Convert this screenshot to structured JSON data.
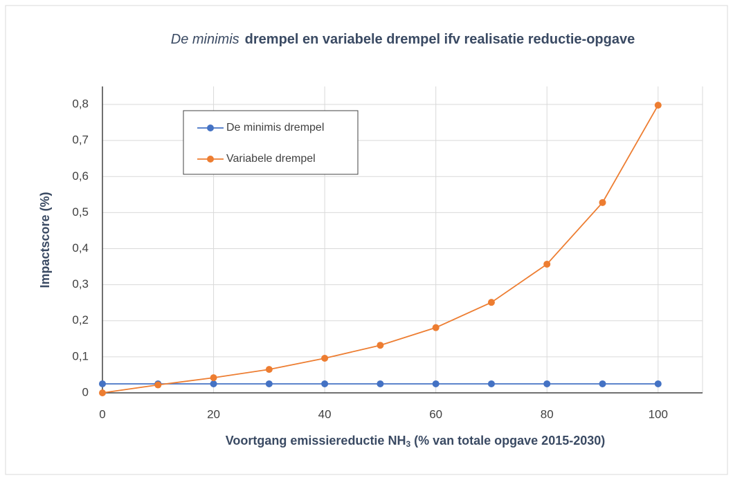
{
  "chart_data": {
    "type": "line",
    "title": [
      "De minimis",
      "drempel en variabele drempel ifv realisatie reductie-opgave"
    ],
    "xlabel": [
      "Voortgang emissiereductie NH",
      "3",
      " (% van totale opgave 2015-2030)"
    ],
    "ylabel": "Impactscore (%)",
    "x": [
      0,
      10,
      20,
      30,
      40,
      50,
      60,
      70,
      80,
      90,
      100
    ],
    "series": [
      {
        "name": "De minimis drempel",
        "color": "#4472c4",
        "values": [
          0.025,
          0.025,
          0.025,
          0.025,
          0.025,
          0.025,
          0.025,
          0.025,
          0.025,
          0.025,
          0.025
        ]
      },
      {
        "name": "Variabele drempel",
        "color": "#ed7d31",
        "values": [
          0,
          0.022,
          0.042,
          0.065,
          0.096,
          0.132,
          0.181,
          0.251,
          0.357,
          0.528,
          0.798
        ]
      }
    ],
    "xlim": [
      0,
      108
    ],
    "xticks": [
      0,
      20,
      40,
      60,
      80,
      100
    ],
    "ylim": [
      0,
      0.85
    ],
    "yticks": [
      0,
      {
        "value": 0.1,
        "label": "0,1"
      },
      {
        "value": 0.2,
        "label": "0,2"
      },
      {
        "value": 0.3,
        "label": "0,3"
      },
      {
        "value": 0.4,
        "label": "0,4"
      },
      {
        "value": 0.5,
        "label": "0,5"
      },
      {
        "value": 0.6,
        "label": "0,6"
      },
      {
        "value": 0.7,
        "label": "0,7"
      },
      {
        "value": 0.8,
        "label": "0,8"
      }
    ],
    "grid": true,
    "legend": "upper left"
  }
}
